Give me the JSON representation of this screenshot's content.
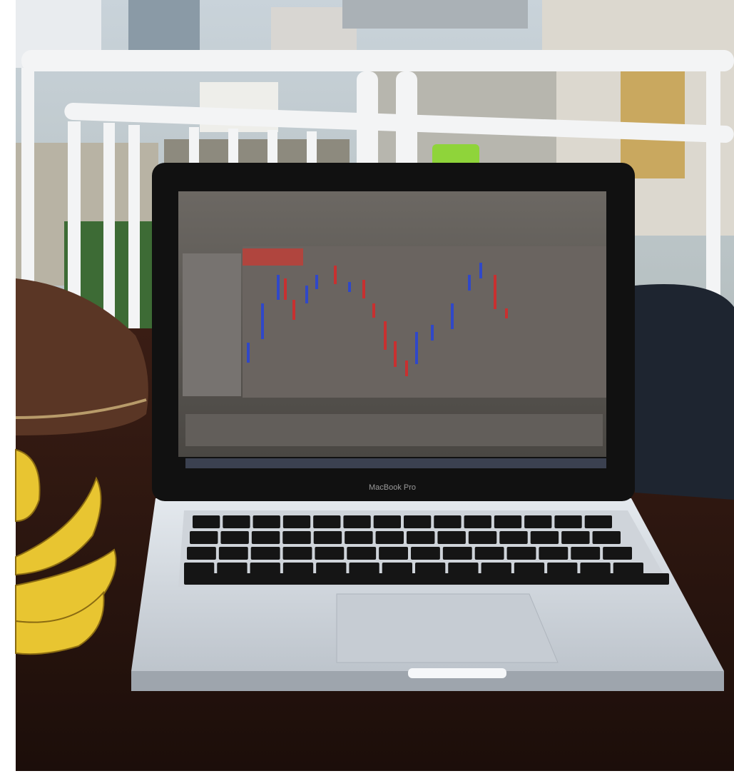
{
  "laptop": {
    "label": "MacBook Pro"
  }
}
